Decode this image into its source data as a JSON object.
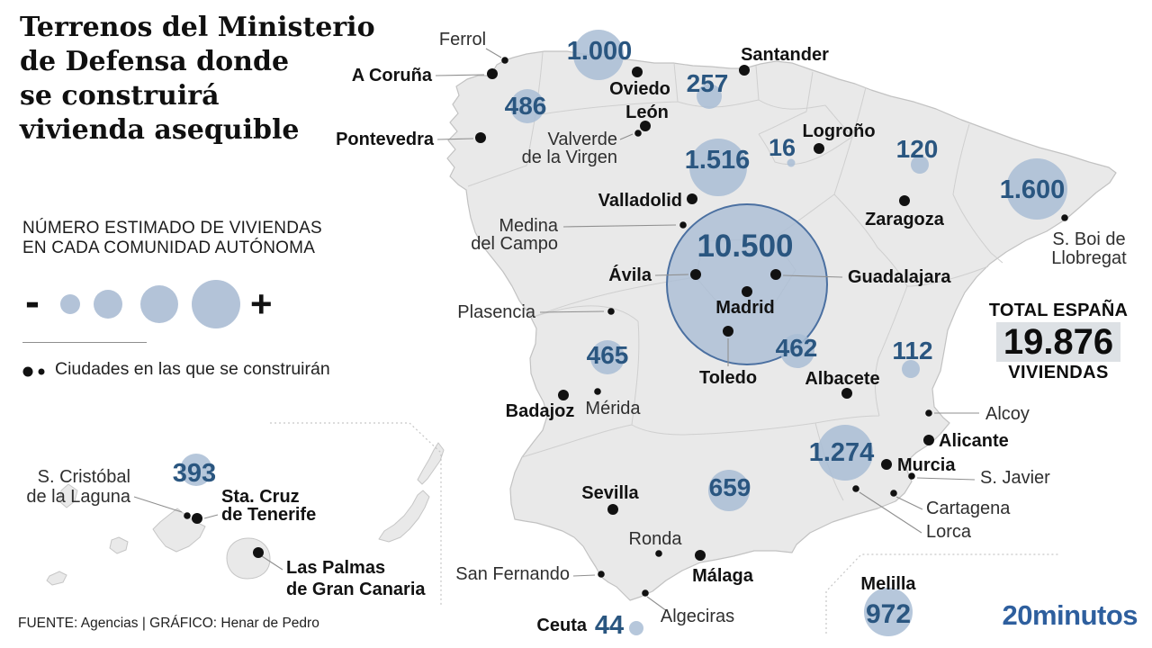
{
  "title": "Terrenos del Ministerio\nde Defensa donde\nse construirá\nvivienda asequible",
  "legend": {
    "heading": "NÚMERO ESTIMADO DE VIVIENDAS\nEN CADA COMUNIDAD AUTÓNOMA",
    "minus": "-",
    "plus": "+",
    "cities_note": "Ciudades en las que se construirán"
  },
  "total": {
    "label": "TOTAL ESPAÑA",
    "value": "19.876",
    "unit": "VIVIENDAS"
  },
  "footer": "FUENTE: Agencias  |  GRÁFICO: Henar de Pedro",
  "brand": "20minutos",
  "colors": {
    "sea": "#ffffff",
    "land": "#e9e9e9",
    "coast": "#c2c2c2",
    "region_border": "#cfcfcf",
    "bubble": "#a9bdd5",
    "bubble_number": "#2a5680",
    "madrid_ring": "#4b70a1",
    "city_dot": "#111111",
    "leader": "#8f8f8f",
    "total_highlight": "#dde1e5",
    "brand_blue": "#2e5f9e",
    "inset_dash": "#c6c6c6"
  },
  "map": {
    "regions": [
      {
        "id": "galicia",
        "label": "486",
        "value": 486
      },
      {
        "id": "asturias",
        "label": "1.000",
        "value": 1000
      },
      {
        "id": "cantabria",
        "label": "257",
        "value": 257
      },
      {
        "id": "la-rioja",
        "label": "16",
        "value": 16
      },
      {
        "id": "aragon",
        "label": "120",
        "value": 120
      },
      {
        "id": "cataluna",
        "label": "1.600",
        "value": 1600
      },
      {
        "id": "castilla-y-leon",
        "label": "1.516",
        "value": 1516
      },
      {
        "id": "madrid",
        "label": "10.500",
        "value": 10500
      },
      {
        "id": "castilla-la-mancha",
        "label": "462",
        "value": 462
      },
      {
        "id": "extremadura",
        "label": "465",
        "value": 465
      },
      {
        "id": "c-valenciana",
        "label": "112",
        "value": 112
      },
      {
        "id": "murcia",
        "label": "1.274",
        "value": 1274
      },
      {
        "id": "andalucia",
        "label": "659",
        "value": 659
      },
      {
        "id": "canarias",
        "label": "393",
        "value": 393
      },
      {
        "id": "ceuta",
        "label": "44",
        "value": 44
      },
      {
        "id": "melilla",
        "label": "972",
        "value": 972
      }
    ],
    "cities": [
      {
        "id": "ferrol",
        "name": "Ferrol",
        "weight": "regular"
      },
      {
        "id": "a-coruna",
        "name": "A Coruña",
        "weight": "bold"
      },
      {
        "id": "pontevedra",
        "name": "Pontevedra",
        "weight": "bold"
      },
      {
        "id": "oviedo",
        "name": "Oviedo",
        "weight": "bold"
      },
      {
        "id": "santander",
        "name": "Santander",
        "weight": "bold"
      },
      {
        "id": "leon",
        "name": "León",
        "weight": "bold"
      },
      {
        "id": "valverde",
        "name": "Valverde\nde la Virgen",
        "weight": "regular"
      },
      {
        "id": "valladolid",
        "name": "Valladolid",
        "weight": "bold"
      },
      {
        "id": "medina",
        "name": "Medina\ndel Campo",
        "weight": "regular"
      },
      {
        "id": "logrono",
        "name": "Logroño",
        "weight": "bold"
      },
      {
        "id": "zaragoza",
        "name": "Zaragoza",
        "weight": "bold"
      },
      {
        "id": "s-boi",
        "name": "S. Boi de\nLlobregat",
        "weight": "regular"
      },
      {
        "id": "avila",
        "name": "Ávila",
        "weight": "bold"
      },
      {
        "id": "guadalajara",
        "name": "Guadalajara",
        "weight": "bold"
      },
      {
        "id": "madrid",
        "name": "Madrid",
        "weight": "bold"
      },
      {
        "id": "plasencia",
        "name": "Plasencia",
        "weight": "regular"
      },
      {
        "id": "toledo",
        "name": "Toledo",
        "weight": "bold"
      },
      {
        "id": "albacete",
        "name": "Albacete",
        "weight": "bold"
      },
      {
        "id": "badajoz",
        "name": "Badajoz",
        "weight": "bold"
      },
      {
        "id": "merida",
        "name": "Mérida",
        "weight": "regular"
      },
      {
        "id": "sevilla",
        "name": "Sevilla",
        "weight": "bold"
      },
      {
        "id": "ronda",
        "name": "Ronda",
        "weight": "regular"
      },
      {
        "id": "malaga",
        "name": "Málaga",
        "weight": "bold"
      },
      {
        "id": "san-fernando",
        "name": "San Fernando",
        "weight": "regular"
      },
      {
        "id": "algeciras",
        "name": "Algeciras",
        "weight": "regular"
      },
      {
        "id": "alcoy",
        "name": "Alcoy",
        "weight": "regular"
      },
      {
        "id": "alicante",
        "name": "Alicante",
        "weight": "bold"
      },
      {
        "id": "murcia",
        "name": "Murcia",
        "weight": "bold"
      },
      {
        "id": "s-javier",
        "name": "S. Javier",
        "weight": "regular"
      },
      {
        "id": "cartagena",
        "name": "Cartagena",
        "weight": "regular"
      },
      {
        "id": "lorca",
        "name": "Lorca",
        "weight": "regular"
      },
      {
        "id": "s-cristobal",
        "name": "S. Cristóbal\nde la Laguna",
        "weight": "regular"
      },
      {
        "id": "sta-cruz",
        "name": "Sta. Cruz\nde Tenerife",
        "weight": "bold"
      },
      {
        "id": "las-palmas",
        "name": "Las Palmas\nde Gran Canaria",
        "weight": "bold"
      },
      {
        "id": "ceuta",
        "name": "Ceuta",
        "weight": "bold"
      },
      {
        "id": "melilla",
        "name": "Melilla",
        "weight": "bold"
      }
    ]
  },
  "chart_data": {
    "type": "bubble-map",
    "title": "Terrenos del Ministerio de Defensa donde se construirá vivienda asequible",
    "unit": "viviendas",
    "total": 19876,
    "categories": [
      "486",
      "1.000",
      "257",
      "16",
      "120",
      "1.600",
      "1.516",
      "10.500",
      "462",
      "465",
      "112",
      "1.274",
      "659",
      "393",
      "44",
      "972"
    ],
    "values": [
      486,
      1000,
      257,
      16,
      120,
      1600,
      1516,
      10500,
      462,
      465,
      112,
      1274,
      659,
      393,
      44,
      972
    ]
  }
}
